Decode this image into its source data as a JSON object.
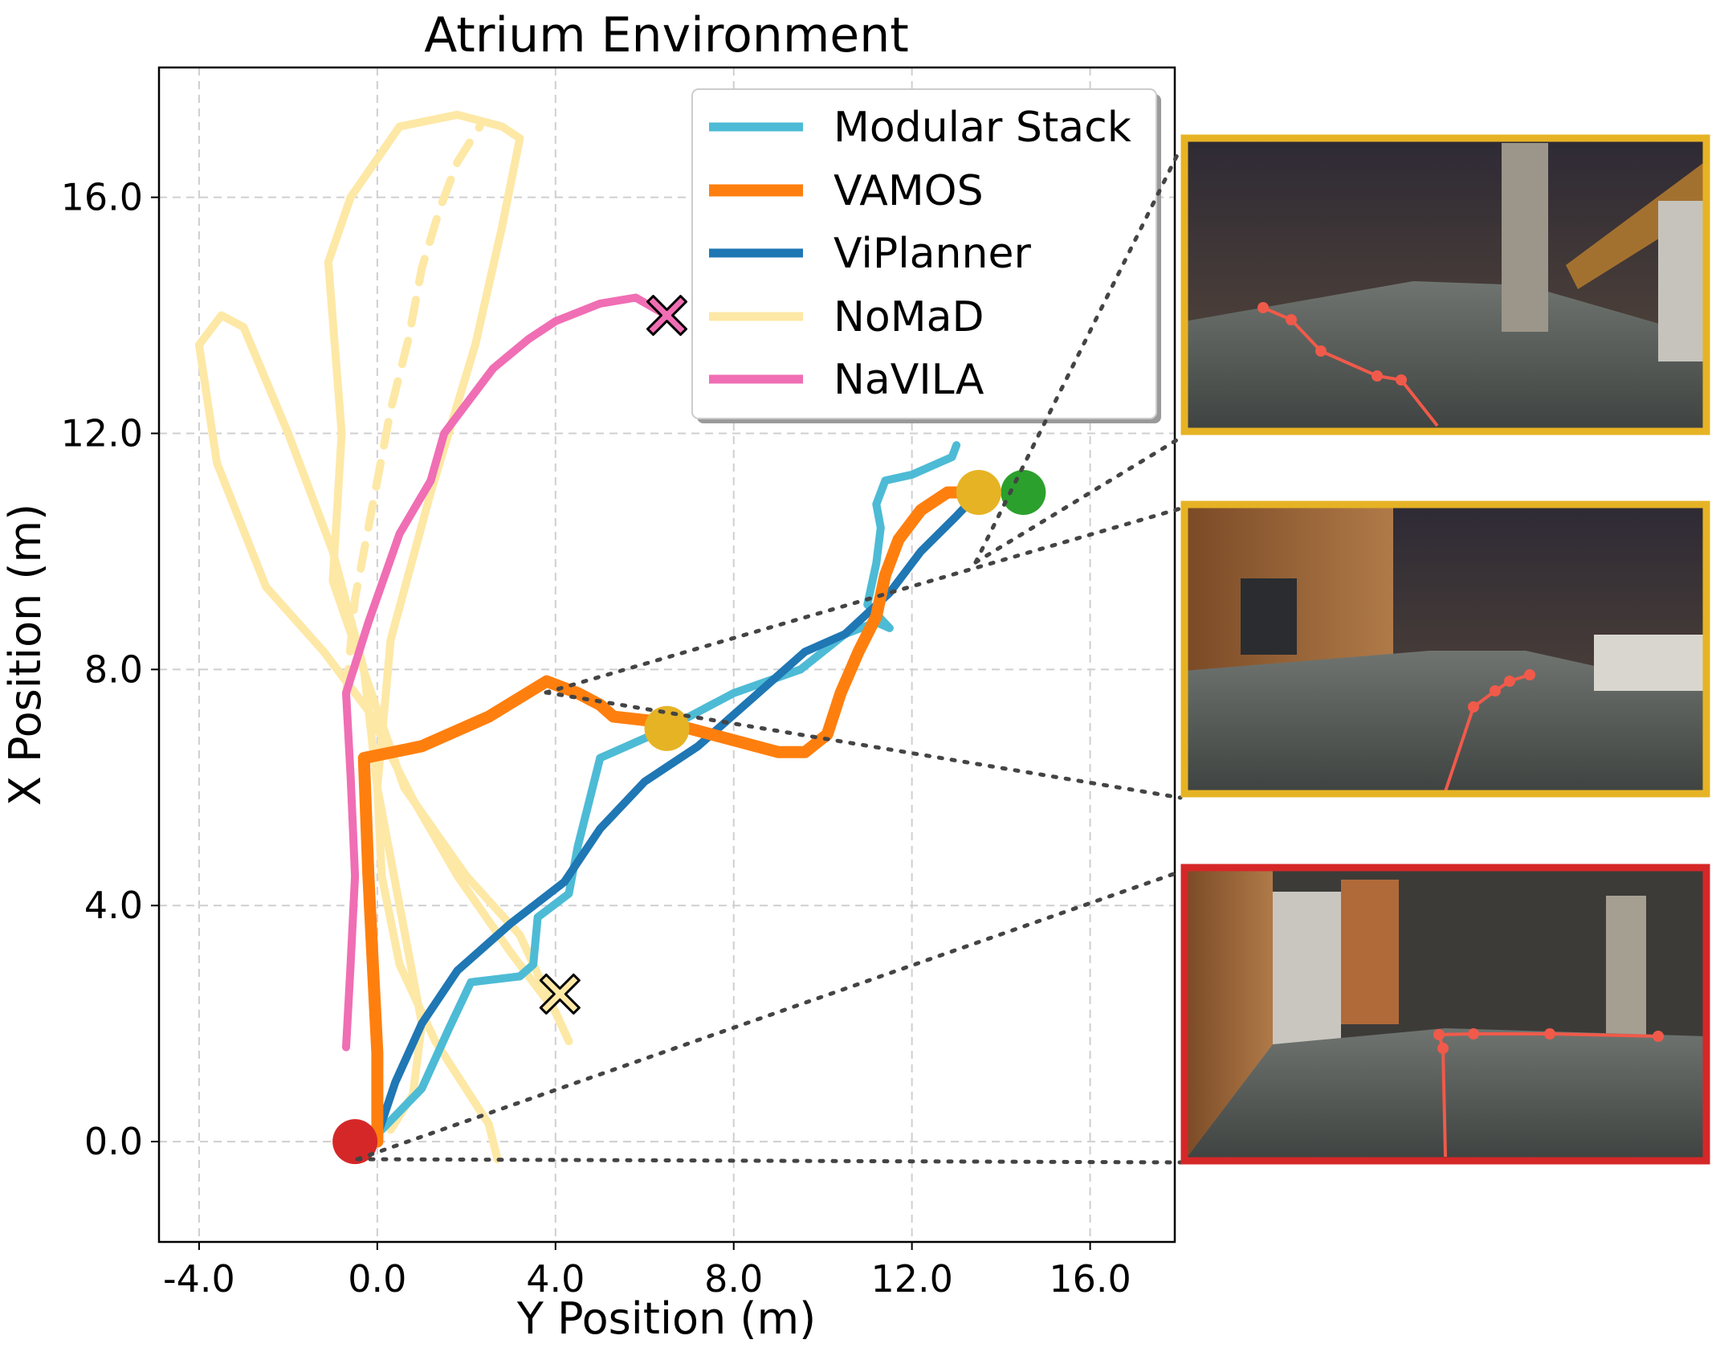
{
  "chart_data": {
    "type": "line",
    "title": "Atrium Environment",
    "xlabel": "Y Position (m)",
    "ylabel": "X Position (m)",
    "xlim": [
      -4.9,
      17.9
    ],
    "ylim": [
      -1.7,
      18.2
    ],
    "xticks": [
      -4.0,
      0.0,
      4.0,
      8.0,
      12.0,
      16.0
    ],
    "yticks": [
      0.0,
      4.0,
      8.0,
      12.0,
      16.0
    ],
    "xtick_labels": [
      "-4.0",
      "0.0",
      "4.0",
      "8.0",
      "12.0",
      "16.0"
    ],
    "ytick_labels": [
      "0.0",
      "4.0",
      "8.0",
      "12.0",
      "16.0"
    ],
    "grid": true,
    "legend_position": "top-right",
    "series": [
      {
        "name": "Modular Stack",
        "color": "#4dbbd5",
        "points": [
          [
            0.1,
            0.2
          ],
          [
            1.0,
            0.9
          ],
          [
            1.6,
            1.9
          ],
          [
            2.1,
            2.7
          ],
          [
            3.2,
            2.8
          ],
          [
            3.5,
            3.0
          ],
          [
            3.6,
            3.8
          ],
          [
            4.3,
            4.2
          ],
          [
            4.5,
            5.0
          ],
          [
            4.8,
            5.9
          ],
          [
            5.0,
            6.5
          ],
          [
            6.5,
            7.0
          ],
          [
            8.0,
            7.6
          ],
          [
            9.5,
            8.0
          ],
          [
            10.5,
            8.6
          ],
          [
            11.2,
            8.8
          ],
          [
            11.5,
            8.7
          ],
          [
            11.0,
            9.1
          ],
          [
            11.2,
            9.8
          ],
          [
            11.3,
            10.4
          ],
          [
            11.2,
            10.8
          ],
          [
            11.4,
            11.2
          ],
          [
            12.0,
            11.3
          ],
          [
            12.9,
            11.6
          ],
          [
            13.0,
            11.8
          ]
        ]
      },
      {
        "name": "VAMOS",
        "color": "#ff7f0e",
        "points": [
          [
            0.0,
            0.0
          ],
          [
            0.0,
            1.5
          ],
          [
            -0.1,
            3.0
          ],
          [
            -0.2,
            4.5
          ],
          [
            -0.3,
            6.5
          ],
          [
            1.0,
            6.7
          ],
          [
            2.5,
            7.2
          ],
          [
            3.8,
            7.8
          ],
          [
            4.5,
            7.6
          ],
          [
            5.0,
            7.4
          ],
          [
            5.3,
            7.2
          ],
          [
            6.5,
            7.1
          ],
          [
            8.0,
            6.8
          ],
          [
            9.0,
            6.6
          ],
          [
            9.6,
            6.6
          ],
          [
            10.1,
            6.9
          ],
          [
            10.4,
            7.6
          ],
          [
            10.8,
            8.3
          ],
          [
            11.2,
            8.9
          ],
          [
            11.4,
            9.6
          ],
          [
            11.7,
            10.2
          ],
          [
            12.2,
            10.7
          ],
          [
            12.8,
            11.0
          ],
          [
            13.5,
            11.0
          ]
        ]
      },
      {
        "name": "ViPlanner",
        "color": "#1f77b4",
        "points": [
          [
            0.0,
            0.1
          ],
          [
            0.4,
            1.0
          ],
          [
            1.0,
            2.0
          ],
          [
            1.8,
            2.9
          ],
          [
            3.0,
            3.7
          ],
          [
            4.2,
            4.4
          ],
          [
            5.0,
            5.3
          ],
          [
            6.0,
            6.1
          ],
          [
            7.2,
            6.7
          ],
          [
            8.4,
            7.5
          ],
          [
            9.6,
            8.3
          ],
          [
            10.5,
            8.6
          ],
          [
            11.5,
            9.3
          ],
          [
            12.2,
            10.0
          ],
          [
            13.0,
            10.6
          ],
          [
            13.5,
            11.0
          ]
        ]
      },
      {
        "name": "NoMaD",
        "color": "#fde8a6",
        "points": [
          [
            2.7,
            -0.3
          ],
          [
            2.5,
            0.3
          ],
          [
            1.3,
            1.7
          ],
          [
            0.5,
            3.0
          ],
          [
            0.1,
            4.5
          ],
          [
            0.0,
            6.0
          ],
          [
            0.3,
            8.5
          ],
          [
            1.2,
            11.0
          ],
          [
            2.2,
            13.5
          ],
          [
            2.8,
            15.5
          ],
          [
            3.2,
            17.0
          ],
          [
            2.8,
            17.2
          ],
          [
            1.8,
            17.4
          ],
          [
            0.5,
            17.2
          ],
          [
            -0.6,
            16.0
          ],
          [
            -1.1,
            14.9
          ],
          [
            -0.8,
            12.0
          ],
          [
            -1.0,
            9.5
          ],
          [
            0.6,
            6.0
          ],
          [
            2.0,
            4.5
          ],
          [
            3.2,
            3.5
          ],
          [
            4.3,
            1.7
          ],
          [
            4.0,
            2.2
          ],
          [
            3.0,
            3.2
          ],
          [
            1.8,
            4.5
          ],
          [
            0.8,
            5.8
          ],
          [
            -0.2,
            7.3
          ],
          [
            -1.2,
            8.3
          ],
          [
            -2.5,
            9.4
          ],
          [
            -3.6,
            11.5
          ],
          [
            -4.0,
            13.5
          ],
          [
            -3.5,
            14.0
          ],
          [
            -3.0,
            13.8
          ],
          [
            -2.0,
            12.0
          ],
          [
            -1.0,
            10.0
          ],
          [
            -0.3,
            8.0
          ],
          [
            0.0,
            6.0
          ],
          [
            0.5,
            4.0
          ],
          [
            1.0,
            2.0
          ],
          [
            0.8,
            0.8
          ],
          [
            0.3,
            0.2
          ]
        ]
      },
      {
        "name": "NoMaD",
        "color": "#fde8a6",
        "dashed": true,
        "points": [
          [
            -0.7,
            7.6
          ],
          [
            -0.5,
            9.2
          ],
          [
            -0.3,
            10.0
          ],
          [
            0.0,
            11.2
          ],
          [
            0.3,
            12.4
          ],
          [
            0.7,
            13.6
          ],
          [
            1.0,
            14.8
          ],
          [
            1.4,
            15.8
          ],
          [
            1.8,
            16.6
          ],
          [
            2.3,
            17.2
          ]
        ]
      },
      {
        "name": "NaVILA",
        "color": "#f06eb4",
        "points": [
          [
            -0.7,
            1.6
          ],
          [
            -0.6,
            3.0
          ],
          [
            -0.5,
            4.5
          ],
          [
            -0.6,
            6.2
          ],
          [
            -0.7,
            7.6
          ],
          [
            -0.2,
            8.8
          ],
          [
            0.5,
            10.3
          ],
          [
            1.2,
            11.2
          ],
          [
            1.5,
            12.0
          ],
          [
            2.0,
            12.5
          ],
          [
            2.6,
            13.1
          ],
          [
            3.4,
            13.6
          ],
          [
            4.0,
            13.9
          ],
          [
            5.0,
            14.2
          ],
          [
            5.8,
            14.3
          ],
          [
            6.5,
            14.0
          ]
        ]
      }
    ],
    "markers": [
      {
        "type": "circle",
        "label": "start",
        "color": "#d62728",
        "x": -0.5,
        "y": 0.0
      },
      {
        "type": "circle",
        "label": "goal",
        "color": "#2ca02c",
        "x": 14.5,
        "y": 11.0
      },
      {
        "type": "circle",
        "label": "waypoint",
        "color": "#e6b325",
        "x": 6.5,
        "y": 7.0
      },
      {
        "type": "circle",
        "label": "waypoint",
        "color": "#e6b325",
        "x": 13.5,
        "y": 11.0
      },
      {
        "type": "cross",
        "label": "NaVILA end",
        "color": "#f06eb4",
        "x": 6.5,
        "y": 14.0
      },
      {
        "type": "cross",
        "label": "NoMaD end",
        "color": "#fde8a6",
        "x": 4.1,
        "y": 2.5
      }
    ],
    "insets": [
      {
        "name": "top-view",
        "border_color": "#e6b325"
      },
      {
        "name": "middle-view",
        "border_color": "#e6b325"
      },
      {
        "name": "bottom-view",
        "border_color": "#d62728"
      }
    ]
  }
}
